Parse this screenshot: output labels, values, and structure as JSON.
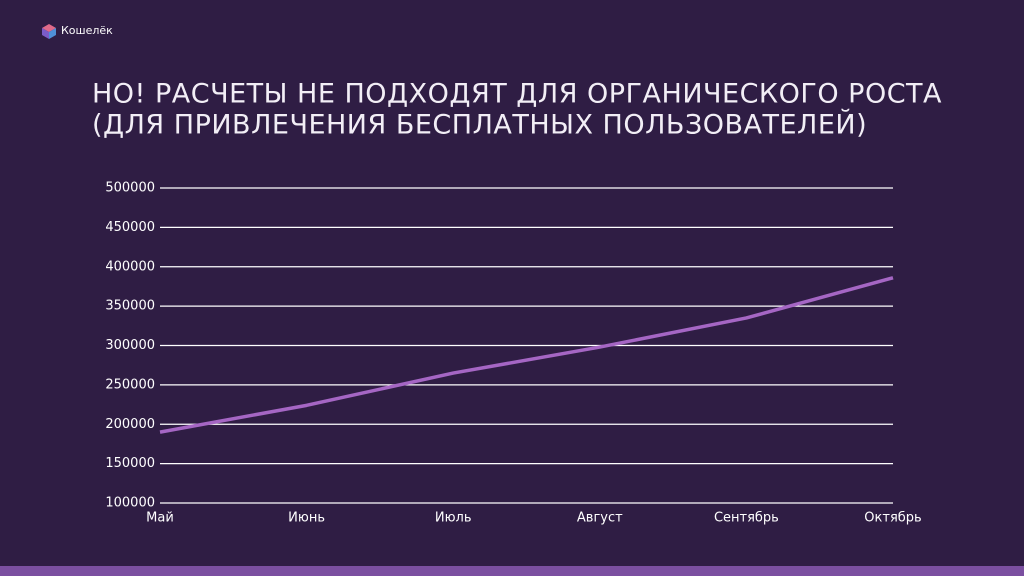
{
  "brand": "Кошелёк",
  "chart_data": {
    "type": "line",
    "title": [
      "НО! РАСЧЕТЫ НЕ ПОДХОДЯТ ДЛЯ ОРГАНИЧЕСКОГО РОСТА",
      "(ДЛЯ ПРИВЛЕЧЕНИЯ БЕСПЛАТНЫХ ПОЛЬЗОВАТЕЛЕЙ)"
    ],
    "categories": [
      "Май",
      "Июнь",
      "Июль",
      "Август",
      "Сентябрь",
      "Октябрь"
    ],
    "values": [
      190000,
      224000,
      265000,
      298000,
      335000,
      386000
    ],
    "color": "#a566c4",
    "ylim": [
      100000,
      500000
    ],
    "yticks": [
      100000,
      150000,
      200000,
      250000,
      300000,
      350000,
      400000,
      450000,
      500000
    ],
    "grid": true
  }
}
